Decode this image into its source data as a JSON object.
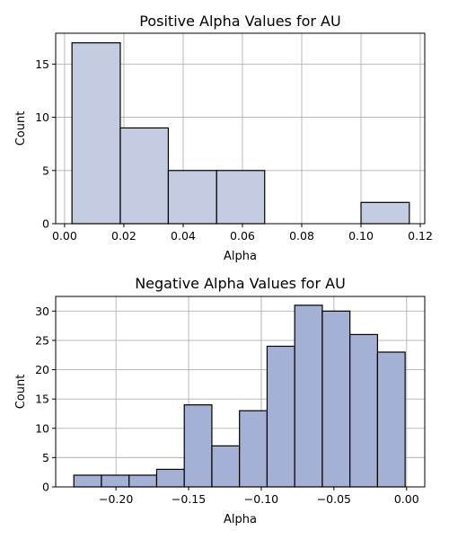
{
  "chart_data": [
    {
      "type": "bar",
      "subtype": "histogram",
      "title": "Positive Alpha Values for AU",
      "xlabel": "Alpha",
      "ylabel": "Count",
      "xlim": [
        -0.003,
        0.1215
      ],
      "ylim": [
        0,
        17.9
      ],
      "xticks": [
        0.0,
        0.02,
        0.04,
        0.06,
        0.08,
        0.1,
        0.12
      ],
      "xtick_labels": [
        "0.00",
        "0.02",
        "0.04",
        "0.06",
        "0.08",
        "0.10",
        "0.12"
      ],
      "yticks": [
        0,
        5,
        10,
        15
      ],
      "ytick_labels": [
        "0",
        "5",
        "10",
        "15"
      ],
      "grid": true,
      "bar_color": "#c3cce0",
      "bins": [
        {
          "x0": 0.0025,
          "x1": 0.0188,
          "count": 17
        },
        {
          "x0": 0.0188,
          "x1": 0.035,
          "count": 9
        },
        {
          "x0": 0.035,
          "x1": 0.0513,
          "count": 5
        },
        {
          "x0": 0.0513,
          "x1": 0.0675,
          "count": 5
        },
        {
          "x0": 0.0675,
          "x1": 0.0838,
          "count": 0
        },
        {
          "x0": 0.0838,
          "x1": 0.1,
          "count": 0
        },
        {
          "x0": 0.1,
          "x1": 0.1163,
          "count": 2
        }
      ]
    },
    {
      "type": "bar",
      "subtype": "histogram",
      "title": "Negative Alpha Values for AU",
      "xlabel": "Alpha",
      "ylabel": "Count",
      "xlim": [
        -0.2415,
        0.0125
      ],
      "ylim": [
        0,
        32.5
      ],
      "xticks": [
        -0.2,
        -0.15,
        -0.1,
        -0.05,
        0.0
      ],
      "xtick_labels": [
        "−0.20",
        "−0.15",
        "−0.10",
        "−0.05",
        "0.00"
      ],
      "yticks": [
        0,
        5,
        10,
        15,
        20,
        25,
        30
      ],
      "ytick_labels": [
        "0",
        "5",
        "10",
        "15",
        "20",
        "25",
        "30"
      ],
      "grid": true,
      "bar_color": "#a4b0d4",
      "bins": [
        {
          "x0": -0.229,
          "x1": -0.21,
          "count": 2
        },
        {
          "x0": -0.21,
          "x1": -0.191,
          "count": 2
        },
        {
          "x0": -0.191,
          "x1": -0.172,
          "count": 2
        },
        {
          "x0": -0.172,
          "x1": -0.153,
          "count": 3
        },
        {
          "x0": -0.153,
          "x1": -0.134,
          "count": 14
        },
        {
          "x0": -0.134,
          "x1": -0.115,
          "count": 7
        },
        {
          "x0": -0.115,
          "x1": -0.096,
          "count": 13
        },
        {
          "x0": -0.096,
          "x1": -0.077,
          "count": 24
        },
        {
          "x0": -0.077,
          "x1": -0.058,
          "count": 31
        },
        {
          "x0": -0.058,
          "x1": -0.039,
          "count": 30
        },
        {
          "x0": -0.039,
          "x1": -0.02,
          "count": 26
        },
        {
          "x0": -0.02,
          "x1": -0.001,
          "count": 23
        }
      ]
    }
  ]
}
